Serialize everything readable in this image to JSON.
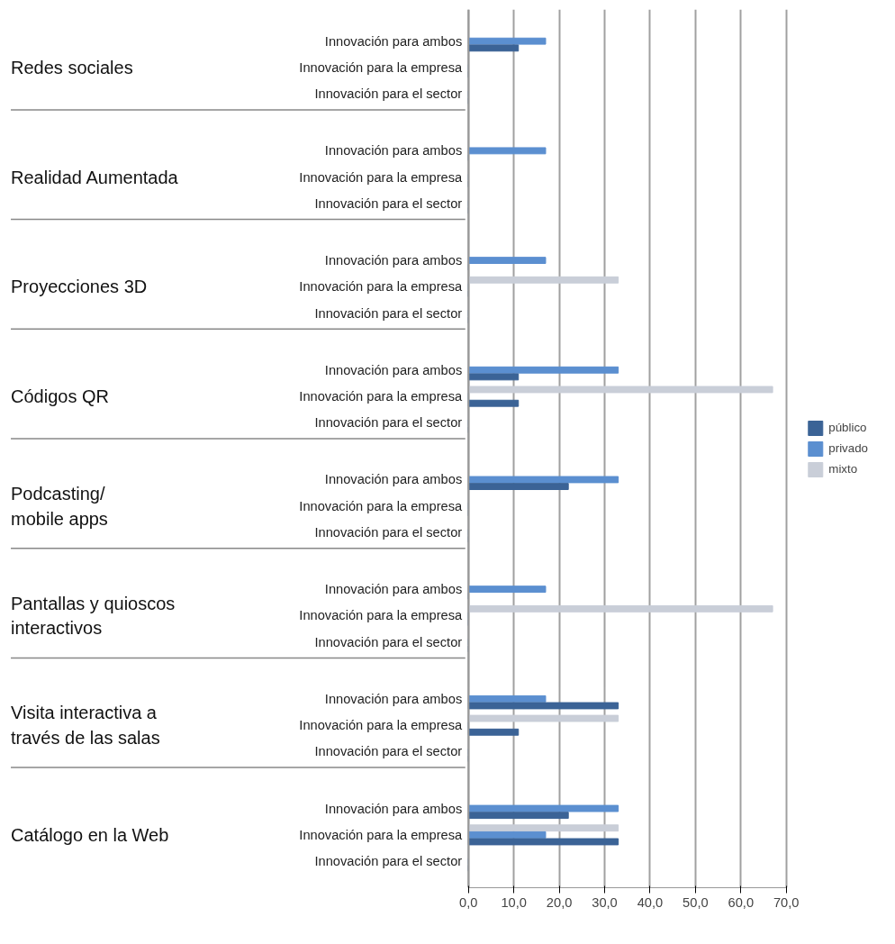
{
  "chart_data": {
    "type": "bar",
    "orientation": "horizontal",
    "categories": [
      "Innovación para ambos",
      "Innovación para la empresa",
      "Innovación para el sector",
      "Innovación para ambos",
      "Innovación para la empresa",
      "Innovación para el sector",
      "Innovación para ambos",
      "Innovación para la empresa",
      "Innovación para el sector",
      "Innovación para ambos",
      "Innovación para la empresa",
      "Innovación para el sector",
      "Innovación para ambos",
      "Innovación para la empresa",
      "Innovación para el sector",
      "Innovación para ambos",
      "Innovación para la empresa",
      "Innovación para el sector",
      "Innovación para ambos",
      "Innovación para la empresa",
      "Innovación para el sector",
      "Innovación para ambos",
      "Innovación para la empresa",
      "Innovación para el sector"
    ],
    "series": [
      {
        "name": "mixto",
        "color": "#c9ced8",
        "values": [
          0,
          0,
          0,
          0,
          0,
          0,
          0,
          33,
          0,
          0,
          67,
          0,
          0,
          0,
          0,
          0,
          67,
          0,
          0,
          33,
          0,
          0,
          33,
          0
        ]
      },
      {
        "name": "privado",
        "color": "#5b8fd0",
        "values": [
          17,
          0,
          0,
          17,
          0,
          0,
          17,
          0,
          0,
          33,
          0,
          0,
          33,
          0,
          0,
          17,
          0,
          0,
          17,
          0,
          0,
          33,
          17,
          0
        ]
      },
      {
        "name": "público",
        "color": "#3b6396",
        "values": [
          11,
          0,
          0,
          0,
          0,
          0,
          0,
          0,
          0,
          11,
          11,
          0,
          22,
          0,
          0,
          0,
          0,
          0,
          33,
          11,
          0,
          22,
          33,
          0
        ]
      }
    ],
    "annotations": [
      "Redes sociales",
      "Realidad Aumentada",
      "Proyecciones 3D",
      "Códigos QR",
      "Podcasting/\nmobile apps",
      "Pantallas y quioscos\ninteractivos",
      "Visita interactiva a\ntravés de las salas",
      "Catálogo en la Web"
    ],
    "xlim": [
      0,
      70
    ],
    "xticks": [
      {
        "value": 0,
        "label": "0,0"
      },
      {
        "value": 10,
        "label": "10,0"
      },
      {
        "value": 20,
        "label": "20,0"
      },
      {
        "value": 30,
        "label": "30,0"
      },
      {
        "value": 40,
        "label": "40,0"
      },
      {
        "value": 50,
        "label": "50,0"
      },
      {
        "value": 60,
        "label": "60,0"
      },
      {
        "value": 70,
        "label": "70,0"
      }
    ],
    "grid": "x",
    "legend": "right"
  }
}
